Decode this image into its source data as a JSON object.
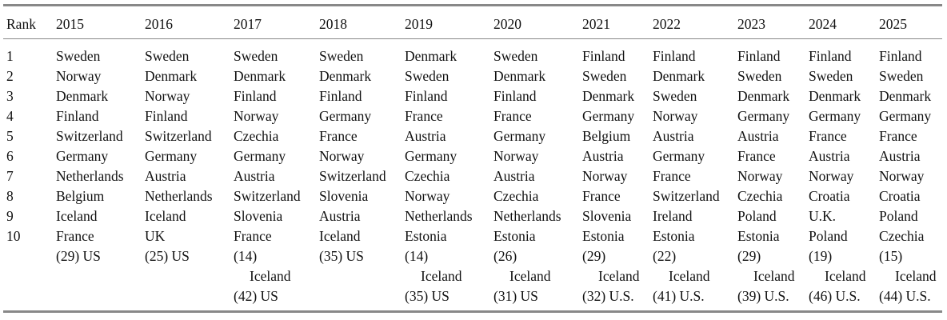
{
  "table": {
    "header": [
      "Rank",
      "2015",
      "2016",
      "2017",
      "2018",
      "2019",
      "2020",
      "2021",
      "2022",
      "2023",
      "2024",
      "2025"
    ],
    "rows": [
      [
        1,
        "Sweden",
        "Sweden",
        "Sweden",
        "Sweden",
        "Denmark",
        "Sweden",
        "Finland",
        "Finland",
        "Finland",
        "Finland",
        "Finland"
      ],
      [
        2,
        "Norway",
        "Denmark",
        "Denmark",
        "Denmark",
        "Sweden",
        "Denmark",
        "Sweden",
        "Denmark",
        "Sweden",
        "Sweden",
        "Sweden"
      ],
      [
        3,
        "Denmark",
        "Norway",
        "Finland",
        "Finland",
        "Finland",
        "Finland",
        "Denmark",
        "Sweden",
        "Denmark",
        "Denmark",
        "Denmark"
      ],
      [
        4,
        "Finland",
        "Finland",
        "Norway",
        "Germany",
        "France",
        "France",
        "Germany",
        "Norway",
        "Germany",
        "Germany",
        "Germany"
      ],
      [
        5,
        "Switzerland",
        "Switzerland",
        "Czechia",
        "France",
        "Austria",
        "Germany",
        "Belgium",
        "Austria",
        "Austria",
        "France",
        "France"
      ],
      [
        6,
        "Germany",
        "Germany",
        "Germany",
        "Norway",
        "Germany",
        "Norway",
        "Austria",
        "Germany",
        "France",
        "Austria",
        "Austria"
      ],
      [
        7,
        "Netherlands",
        "Austria",
        "Austria",
        "Switzerland",
        "Czechia",
        "Austria",
        "Norway",
        "France",
        "Norway",
        "Norway",
        "Norway"
      ],
      [
        8,
        "Belgium",
        "Netherlands",
        "Switzerland",
        "Slovenia",
        "Norway",
        "Czechia",
        "France",
        "Switzerland",
        "Czechia",
        "Croatia",
        "Croatia"
      ],
      [
        9,
        "Iceland",
        "Iceland",
        "Slovenia",
        "Austria",
        "Netherlands",
        "Netherlands",
        "Slovenia",
        "Ireland",
        "Poland",
        "U.K.",
        "Poland"
      ],
      [
        10,
        "France",
        "UK",
        "France",
        "Iceland",
        "Estonia",
        "Estonia",
        "Estonia",
        "Estonia",
        "Estonia",
        "Poland",
        "Czechia"
      ]
    ],
    "notes": [
      [
        "(29) US"
      ],
      [
        "(25) US"
      ],
      [
        "(14)",
        "Iceland",
        "(42) US"
      ],
      [
        "(35) US"
      ],
      [
        "(14)",
        "Iceland",
        "(35) US"
      ],
      [
        "(26)",
        "Iceland",
        "(31) US"
      ],
      [
        "(29)",
        "Iceland",
        "(32) U.S."
      ],
      [
        "(22)",
        "Iceland",
        "(41) U.S."
      ],
      [
        "(29)",
        "Iceland",
        "(39) U.S."
      ],
      [
        "(19)",
        "Iceland",
        "(46) U.S."
      ],
      [
        "(15)",
        "Iceland",
        "(44) U.S."
      ]
    ]
  }
}
